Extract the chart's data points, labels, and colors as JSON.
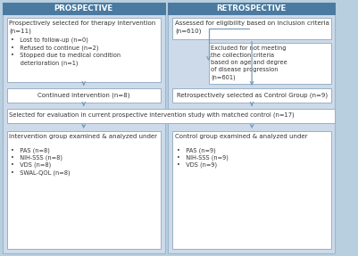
{
  "bg_color": "#cddaea",
  "header_bg": "#4a7aa0",
  "header_text_color": "#ffffff",
  "box_bg": "#ffffff",
  "box_border": "#9ab0c4",
  "arrow_color": "#7a9cb8",
  "text_color": "#333333",
  "fig_bg": "#b8cfe0",
  "header_left": "PROSPECTIVE",
  "header_right": "RETROSPECTIVE",
  "box_top_left_title": "Prospectively selected for therapy intervention\n(n=11)",
  "box_top_left_bullets": "•   Lost to follow-up (n=0)\n•   Refused to continue (n=2)\n•   Stopped due to medical condition\n     deterioration (n=1)",
  "box_top_right": "Assessed for eligibility based on inclusion criteria\n(n=610)",
  "box_excluded": "Excluded for not meeting\nthe collection criteria\nbased on age and degree\nof disease progression\n(n=601)",
  "box_mid_left": "Continued intervention (n=8)",
  "box_mid_right": "Retrospectively selected as Control Group (n=9)",
  "box_full": "Selected for evaluation in current prospective intervention study with matched control (n=17)",
  "box_bot_left_title": "Intervention group examined & analyzed under",
  "box_bot_left_bullets": "•   PAS (n=8)\n•   NIH-SSS (n=8)\n•   VDS (n=8)\n•   SWAL-QOL (n=8)",
  "box_bot_right_title": "Control group examined & analyzed under",
  "box_bot_right_bullets": "•   PAS (n=9)\n•   NIH-SSS (n=9)\n•   VDS (n=9)"
}
